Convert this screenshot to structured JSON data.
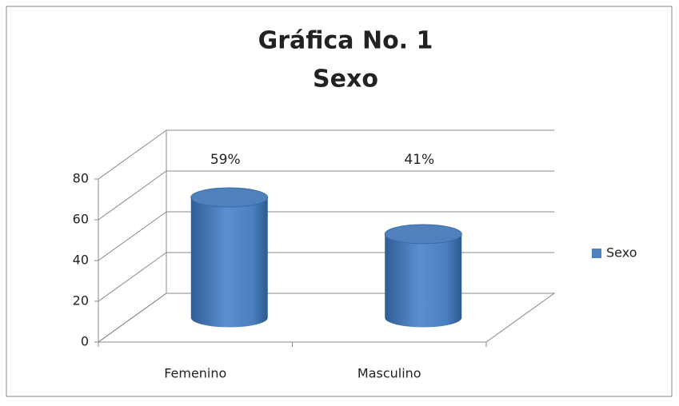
{
  "chart_data": {
    "type": "bar3d",
    "title": "Gráfica No. 1",
    "subtitle": "Sexo",
    "categories": [
      "Femenino",
      "Masculino"
    ],
    "series": [
      {
        "name": "Sexo",
        "color": "#4f81bd",
        "values": [
          59,
          41
        ],
        "value_labels": [
          "59%",
          "41%"
        ]
      }
    ],
    "ylim": [
      0,
      80
    ],
    "yticks": [
      0,
      20,
      40,
      60,
      80
    ],
    "grid": true,
    "legend": "right"
  }
}
